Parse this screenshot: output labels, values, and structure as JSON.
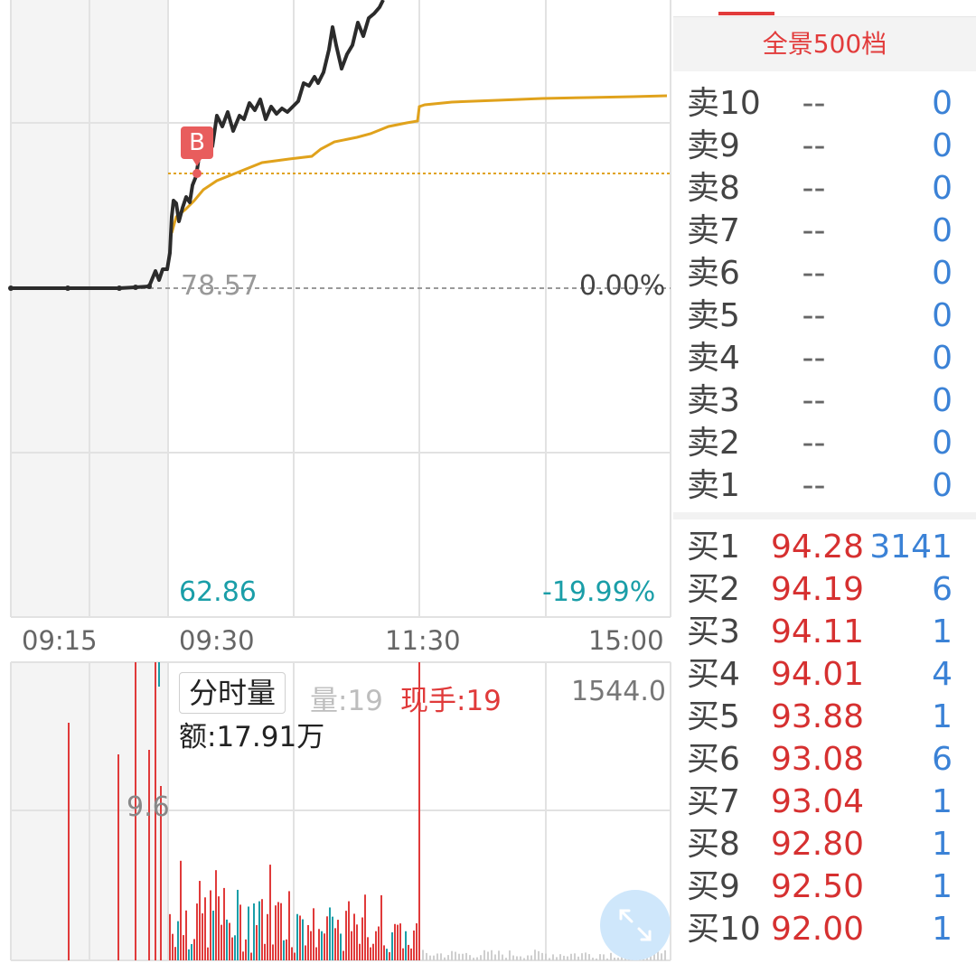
{
  "chart": {
    "price_high_visible": "",
    "ref_price": "78.57",
    "ref_pct": "0.00%",
    "low_price": "62.86",
    "low_pct": "-19.99%",
    "time_labels": [
      "09:15",
      "09:30",
      "11:30",
      "15:00"
    ],
    "trade_marker": "B",
    "colors": {
      "price_line": "#2b2b2b",
      "avg_line": "#e0a21c",
      "up": "#e03a3a",
      "down": "#1a9ea8",
      "grid": "#e2e2e2"
    }
  },
  "volume": {
    "tab_label": "分时量",
    "qty": "量:19",
    "hand": "现手:19",
    "amount": "额:17.91万",
    "max_value": "1544.0",
    "mid_tick": "9.6"
  },
  "book": {
    "panorama_label": "全景500档",
    "asks": [
      {
        "label": "卖10",
        "price": "--",
        "qty": "0"
      },
      {
        "label": "卖9",
        "price": "--",
        "qty": "0"
      },
      {
        "label": "卖8",
        "price": "--",
        "qty": "0"
      },
      {
        "label": "卖7",
        "price": "--",
        "qty": "0"
      },
      {
        "label": "卖6",
        "price": "--",
        "qty": "0"
      },
      {
        "label": "卖5",
        "price": "--",
        "qty": "0"
      },
      {
        "label": "卖4",
        "price": "--",
        "qty": "0"
      },
      {
        "label": "卖3",
        "price": "--",
        "qty": "0"
      },
      {
        "label": "卖2",
        "price": "--",
        "qty": "0"
      },
      {
        "label": "卖1",
        "price": "--",
        "qty": "0"
      }
    ],
    "bids": [
      {
        "label": "买1",
        "price": "94.28",
        "qty": "3141"
      },
      {
        "label": "买2",
        "price": "94.19",
        "qty": "6"
      },
      {
        "label": "买3",
        "price": "94.11",
        "qty": "1"
      },
      {
        "label": "买4",
        "price": "94.01",
        "qty": "4"
      },
      {
        "label": "买5",
        "price": "93.88",
        "qty": "1"
      },
      {
        "label": "买6",
        "price": "93.08",
        "qty": "6"
      },
      {
        "label": "买7",
        "price": "93.04",
        "qty": "1"
      },
      {
        "label": "买8",
        "price": "92.80",
        "qty": "1"
      },
      {
        "label": "买9",
        "price": "92.50",
        "qty": "1"
      },
      {
        "label": "买10",
        "price": "92.00",
        "qty": "1"
      }
    ]
  }
}
